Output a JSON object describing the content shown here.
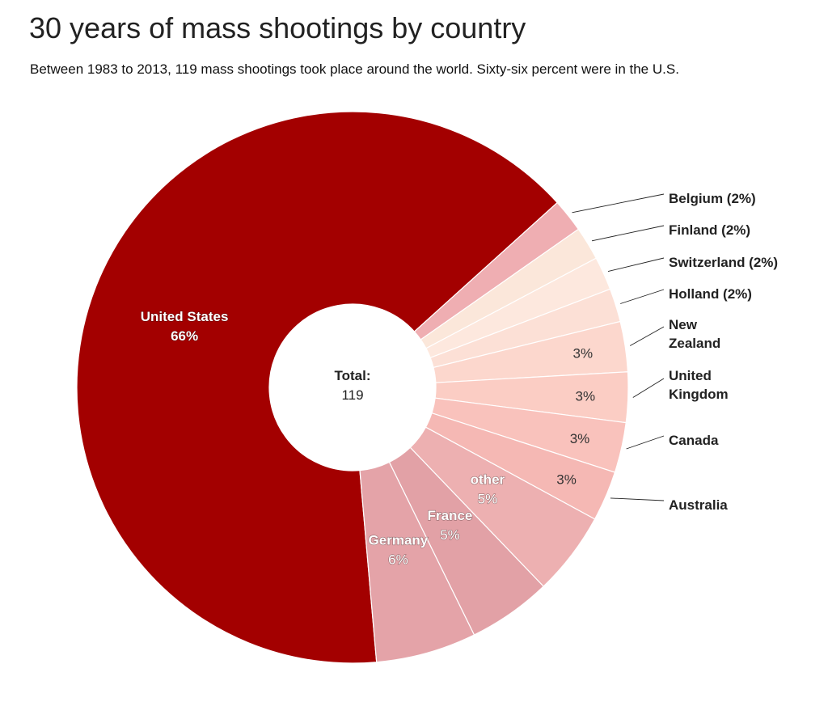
{
  "title": "30 years of mass shootings by country",
  "subtitle": "Between 1983 to 2013, 119 mass shootings took place around the world. Sixty-six percent were in the U.S.",
  "chart_data": {
    "type": "pie",
    "center": {
      "title": "Total:",
      "value": "119"
    },
    "slices": [
      {
        "name": "United States",
        "value": 66,
        "label_lines": [
          "United States",
          "66%"
        ],
        "label_style": "inner-bold",
        "color": "#a30000"
      },
      {
        "name": "Belgium",
        "value": 2,
        "label_lines": [
          "Belgium (2%)"
        ],
        "label_style": "callout",
        "color": "#efaeb2"
      },
      {
        "name": "Finland",
        "value": 2,
        "label_lines": [
          "Finland (2%)"
        ],
        "label_style": "callout",
        "color": "#fbe7da"
      },
      {
        "name": "Switzerland",
        "value": 2,
        "label_lines": [
          "Switzerland (2%)"
        ],
        "label_style": "callout",
        "color": "#fde8de"
      },
      {
        "name": "Holland",
        "value": 2,
        "label_lines": [
          "Holland (2%)"
        ],
        "label_style": "callout",
        "color": "#fce0d6"
      },
      {
        "name": "New Zealand",
        "value": 3,
        "label_lines": [
          "New",
          "Zealand"
        ],
        "pct_label": "3%",
        "label_style": "callout",
        "color": "#fcd7cd"
      },
      {
        "name": "United Kingdom",
        "value": 3,
        "label_lines": [
          "United",
          "Kingdom"
        ],
        "pct_label": "3%",
        "label_style": "callout",
        "color": "#fbcdc4"
      },
      {
        "name": "Canada",
        "value": 3,
        "label_lines": [
          "Canada"
        ],
        "pct_label": "3%",
        "label_style": "callout",
        "color": "#f9c2bc"
      },
      {
        "name": "Australia",
        "value": 3,
        "label_lines": [
          "Australia"
        ],
        "pct_label": "3%",
        "label_style": "callout",
        "color": "#f5b8b4"
      },
      {
        "name": "other",
        "value": 5,
        "label_lines": [
          "other",
          "5%"
        ],
        "label_style": "inner-mixed",
        "color": "#edb0b1"
      },
      {
        "name": "France",
        "value": 5,
        "label_lines": [
          "France",
          "5%"
        ],
        "label_style": "inner-mixed",
        "color": "#e2a1a6"
      },
      {
        "name": "Germany",
        "value": 6,
        "label_lines": [
          "Germany",
          "6%"
        ],
        "label_style": "inner-mixed",
        "color": "#e4a3a8"
      }
    ]
  }
}
